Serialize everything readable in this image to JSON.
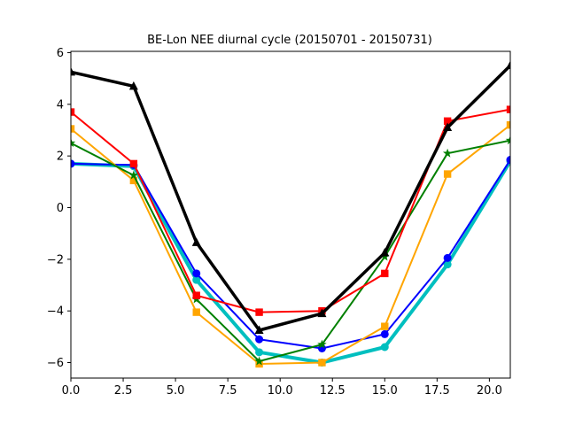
{
  "chart_data": {
    "type": "line",
    "title": "BE-Lon NEE diurnal cycle (20150701 - 20150731)",
    "xlabel": "",
    "ylabel": "",
    "xlim": [
      0,
      21
    ],
    "ylim": [
      -6.6,
      6.05
    ],
    "grid": false,
    "x": [
      0,
      3,
      6,
      9,
      12,
      15,
      18,
      21
    ],
    "xticks": [
      0.0,
      2.5,
      5.0,
      7.5,
      10.0,
      12.5,
      15.0,
      17.5,
      20.0
    ],
    "xtick_labels": [
      "0.0",
      "2.5",
      "5.0",
      "7.5",
      "10.0",
      "12.5",
      "15.0",
      "17.5",
      "20.0"
    ],
    "yticks": [
      -6,
      -4,
      -2,
      0,
      2,
      4,
      6
    ],
    "ytick_labels": [
      "−6",
      "−4",
      "−2",
      "0",
      "2",
      "4",
      "6"
    ],
    "series": [
      {
        "color": "#00bfbf",
        "marker": "circle",
        "width": 4,
        "values": [
          1.7,
          1.6,
          -2.8,
          -5.6,
          -6.0,
          -5.4,
          -2.2,
          1.8
        ]
      },
      {
        "color": "#0000ff",
        "marker": "circle",
        "width": 2,
        "values": [
          1.7,
          1.65,
          -2.55,
          -5.1,
          -5.45,
          -4.9,
          -1.95,
          1.85
        ]
      },
      {
        "color": "#ffa500",
        "marker": "square",
        "width": 2,
        "values": [
          3.05,
          1.05,
          -4.05,
          -6.05,
          -6.0,
          -4.6,
          1.3,
          3.2
        ]
      },
      {
        "color": "#008000",
        "marker": "star",
        "width": 2,
        "values": [
          2.5,
          1.25,
          -3.55,
          -5.95,
          -5.3,
          -1.9,
          2.1,
          2.6
        ]
      },
      {
        "color": "#ff0000",
        "marker": "square",
        "width": 2,
        "values": [
          3.7,
          1.7,
          -3.4,
          -4.05,
          -4.0,
          -2.55,
          3.35,
          3.8
        ]
      },
      {
        "color": "#000000",
        "marker": "triangle",
        "width": 3.5,
        "values": [
          5.25,
          4.7,
          -1.35,
          -4.75,
          -4.1,
          -1.75,
          3.1,
          5.5
        ]
      }
    ]
  }
}
